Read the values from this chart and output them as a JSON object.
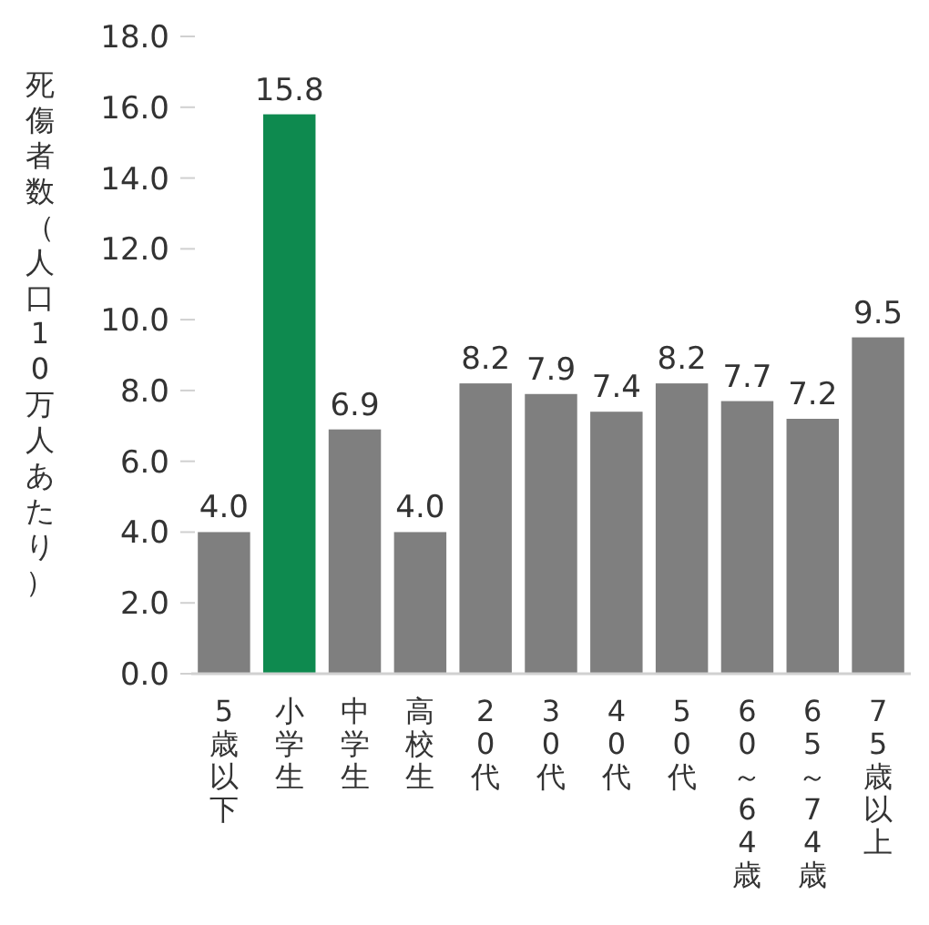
{
  "chart_data": {
    "type": "bar",
    "ylabel": "死傷者数（人口10万人あたり）",
    "categories": [
      "5歳以下",
      "小学生",
      "中学生",
      "高校生",
      "20代",
      "30代",
      "40代",
      "50代",
      "60～64歳",
      "65～74歳",
      "75歳以上"
    ],
    "values": [
      4.0,
      15.8,
      6.9,
      4.0,
      8.2,
      7.9,
      7.4,
      8.2,
      7.7,
      7.2,
      9.5
    ],
    "value_labels": [
      "4.0",
      "15.8",
      "6.9",
      "4.0",
      "8.2",
      "7.9",
      "7.4",
      "8.2",
      "7.7",
      "7.2",
      "9.5"
    ],
    "colors": [
      "#7f7f7f",
      "#0e8a4f",
      "#7f7f7f",
      "#7f7f7f",
      "#7f7f7f",
      "#7f7f7f",
      "#7f7f7f",
      "#7f7f7f",
      "#7f7f7f",
      "#7f7f7f",
      "#7f7f7f"
    ],
    "ylim": [
      0,
      18
    ],
    "yticks": [
      {
        "value": 0,
        "label": "0.0"
      },
      {
        "value": 2,
        "label": "2.0"
      },
      {
        "value": 4,
        "label": "4.0"
      },
      {
        "value": 6,
        "label": "6.0"
      },
      {
        "value": 8,
        "label": "8.0"
      },
      {
        "value": 10,
        "label": "10.0"
      },
      {
        "value": 12,
        "label": "12.0"
      },
      {
        "value": 14,
        "label": "14.0"
      },
      {
        "value": 16,
        "label": "16.0"
      },
      {
        "value": 18,
        "label": "18.0"
      }
    ],
    "grid": false
  }
}
